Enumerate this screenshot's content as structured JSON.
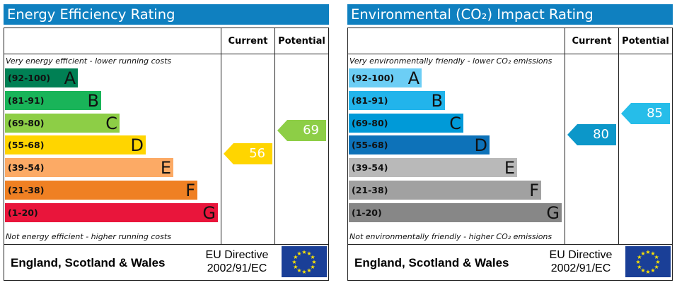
{
  "chart_data": [
    {
      "type": "bar",
      "title": "Energy Efficiency Rating",
      "title_color": "#0f80c0",
      "columns": [
        "Current",
        "Potential"
      ],
      "top_caption": "Very energy efficient - lower running costs",
      "bottom_caption": "Not energy efficient - higher running costs",
      "categories": [
        "(92-100)",
        "(81-91)",
        "(69-80)",
        "(55-68)",
        "(39-54)",
        "(21-38)",
        "(1-20)"
      ],
      "letters": [
        "A",
        "B",
        "C",
        "D",
        "E",
        "F",
        "G"
      ],
      "band_colors": [
        "#008054",
        "#19b459",
        "#8dce46",
        "#ffd500",
        "#fcaa65",
        "#ef8023",
        "#e9153b"
      ],
      "band_text_dark": [
        true,
        true,
        true,
        true,
        true,
        true,
        true
      ],
      "current": {
        "value": 56,
        "band": "D",
        "color": "#ffd500"
      },
      "potential": {
        "value": 69,
        "band": "C",
        "color": "#8dce46"
      },
      "region": "England, Scotland & Wales",
      "directive_line1": "EU Directive",
      "directive_line2": "2002/91/EC"
    },
    {
      "type": "bar",
      "title": "Environmental (CO₂) Impact Rating",
      "title_color": "#0f80c0",
      "columns": [
        "Current",
        "Potential"
      ],
      "top_caption": "Very environmentally friendly - lower CO₂ emissions",
      "bottom_caption": "Not environmentally friendly - higher CO₂ emissions",
      "categories": [
        "(92-100)",
        "(81-91)",
        "(69-80)",
        "(55-68)",
        "(39-54)",
        "(21-38)",
        "(1-20)"
      ],
      "letters": [
        "A",
        "B",
        "C",
        "D",
        "E",
        "F",
        "G"
      ],
      "band_colors": [
        "#6ccef5",
        "#22b4eb",
        "#009ad8",
        "#0d72b9",
        "#b9b9b9",
        "#a1a1a1",
        "#878787"
      ],
      "band_text_dark": [
        true,
        true,
        true,
        true,
        true,
        true,
        true
      ],
      "current": {
        "value": 80,
        "band": "C",
        "color": "#0c97c9"
      },
      "potential": {
        "value": 85,
        "band": "B",
        "color": "#26bde9"
      },
      "region": "England, Scotland & Wales",
      "directive_line1": "EU Directive",
      "directive_line2": "2002/91/EC"
    }
  ]
}
